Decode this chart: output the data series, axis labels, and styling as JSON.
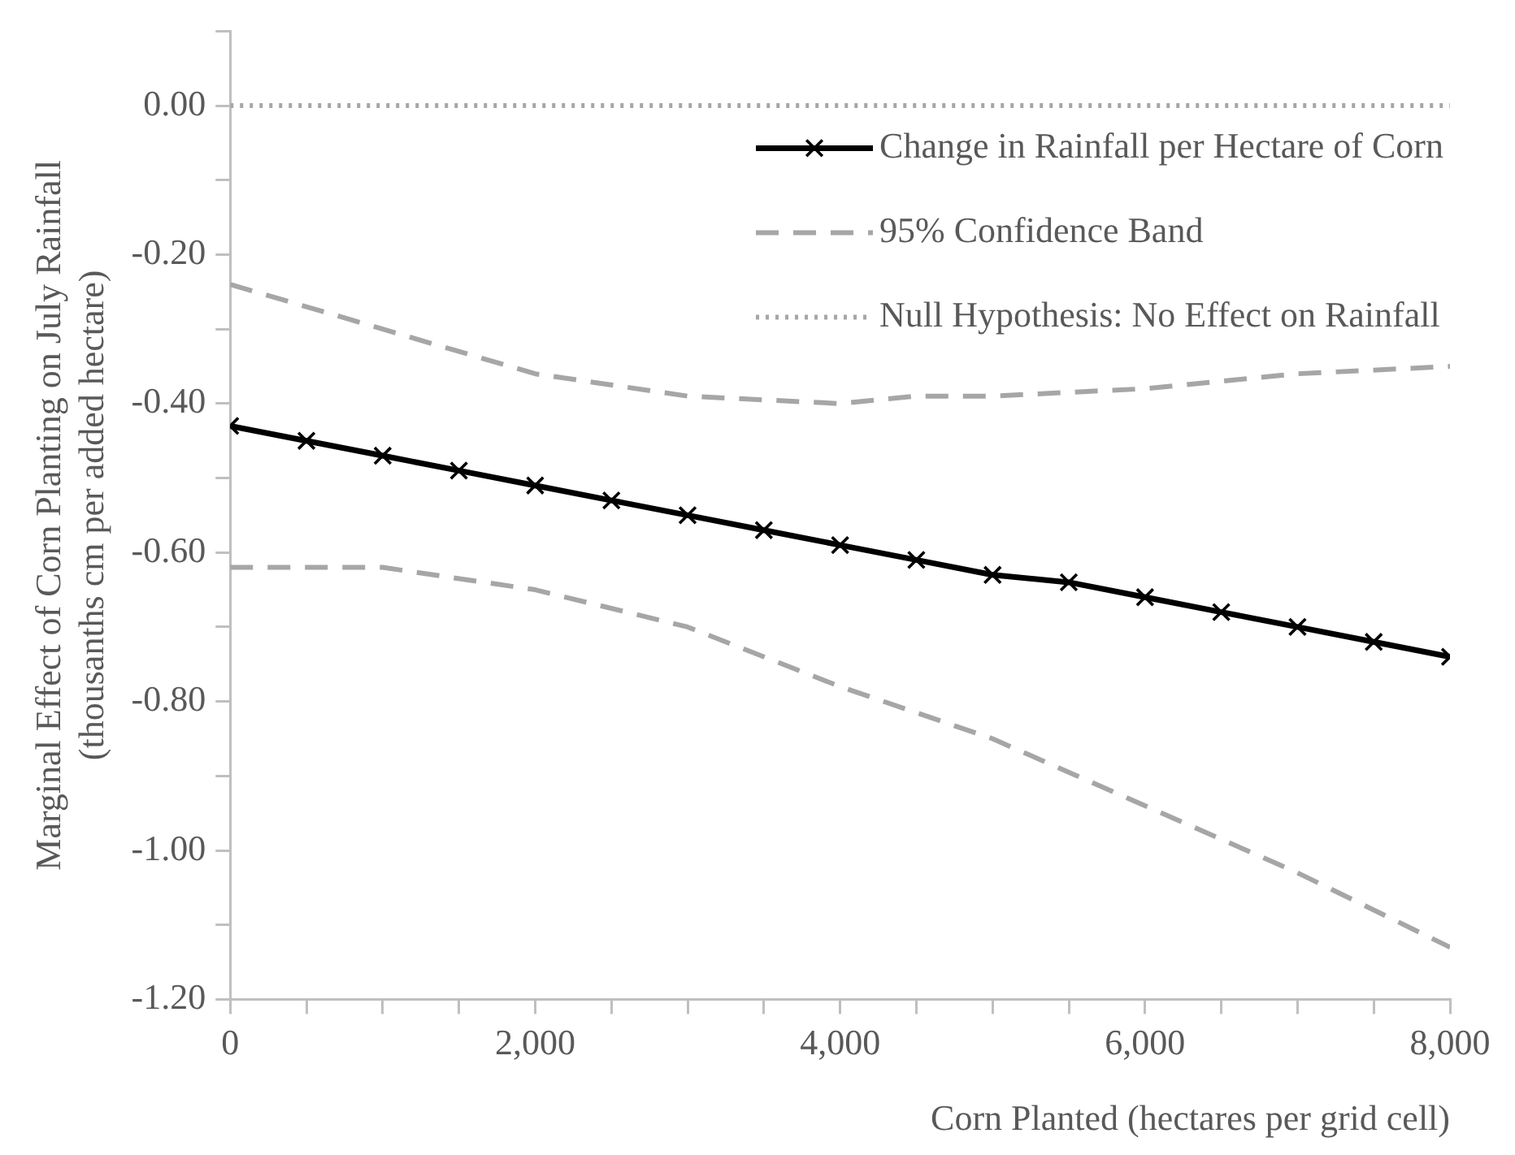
{
  "chart_data": {
    "type": "line",
    "xlabel": "Corn Planted (hectares per grid cell)",
    "ylabel": "Marginal Effect of Corn Planting on July Rainfall\n(thousanths cm per added hectare)",
    "xlim": [
      0,
      8000
    ],
    "ylim": [
      -1.2,
      0.1
    ],
    "xticks": [
      {
        "value": 0,
        "label": "0"
      },
      {
        "value": 500,
        "label": null
      },
      {
        "value": 1000,
        "label": null
      },
      {
        "value": 1500,
        "label": null
      },
      {
        "value": 2000,
        "label": "2,000"
      },
      {
        "value": 2500,
        "label": null
      },
      {
        "value": 3000,
        "label": null
      },
      {
        "value": 3500,
        "label": null
      },
      {
        "value": 4000,
        "label": "4,000"
      },
      {
        "value": 4500,
        "label": null
      },
      {
        "value": 5000,
        "label": null
      },
      {
        "value": 5500,
        "label": null
      },
      {
        "value": 6000,
        "label": "6,000"
      },
      {
        "value": 6500,
        "label": null
      },
      {
        "value": 7000,
        "label": null
      },
      {
        "value": 7500,
        "label": null
      },
      {
        "value": 8000,
        "label": "8,000"
      }
    ],
    "yticks": [
      {
        "value": -1.2,
        "label": "-1.20"
      },
      {
        "value": -1.1,
        "label": null
      },
      {
        "value": -1.0,
        "label": "-1.00"
      },
      {
        "value": -0.9,
        "label": null
      },
      {
        "value": -0.8,
        "label": "-0.80"
      },
      {
        "value": -0.7,
        "label": null
      },
      {
        "value": -0.6,
        "label": "-0.60"
      },
      {
        "value": -0.5,
        "label": null
      },
      {
        "value": -0.4,
        "label": "-0.40"
      },
      {
        "value": -0.3,
        "label": null
      },
      {
        "value": -0.2,
        "label": "-0.20"
      },
      {
        "value": -0.1,
        "label": null
      },
      {
        "value": 0,
        "label": "0.00"
      },
      {
        "value": 0.1,
        "label": null
      }
    ],
    "grid": false,
    "legend": "top right",
    "series": [
      {
        "name": "Change in Rainfall per Hectare of Corn",
        "color": "#000000",
        "marker": "cross",
        "line_style": "solid",
        "x": [
          0,
          500,
          1000,
          1500,
          2000,
          2500,
          3000,
          3500,
          4000,
          4500,
          5000,
          5500,
          6000,
          6500,
          7000,
          7500,
          8000
        ],
        "values": [
          -0.43,
          -0.45,
          -0.47,
          -0.49,
          -0.51,
          -0.53,
          -0.55,
          -0.57,
          -0.59,
          -0.61,
          -0.63,
          -0.64,
          -0.66,
          -0.68,
          -0.7,
          -0.72,
          -0.74
        ]
      },
      {
        "name": "95% Confidence Band",
        "color": "#a6a6a6",
        "marker": "none",
        "line_style": "dashed",
        "x": [
          0,
          1000,
          2000,
          3000,
          4000,
          4500,
          5000,
          6000,
          7000,
          8000
        ],
        "values": [
          -0.24,
          -0.3,
          -0.36,
          -0.39,
          -0.4,
          -0.39,
          -0.39,
          -0.38,
          -0.36,
          -0.35
        ]
      },
      {
        "color": "#a6a6a6",
        "marker": "none",
        "line_style": "dashed",
        "x": [
          0,
          1000,
          2000,
          3000,
          4000,
          5000,
          6000,
          7000,
          8000
        ],
        "values": [
          -0.62,
          -0.62,
          -0.65,
          -0.7,
          -0.78,
          -0.85,
          -0.94,
          -1.03,
          -1.13
        ]
      },
      {
        "name": "Null Hypothesis: No Effect on Rainfall",
        "color": "#a6a6a6",
        "marker": "none",
        "line_style": "dotted",
        "x": [
          0,
          8000
        ],
        "values": [
          0,
          0
        ]
      }
    ]
  }
}
